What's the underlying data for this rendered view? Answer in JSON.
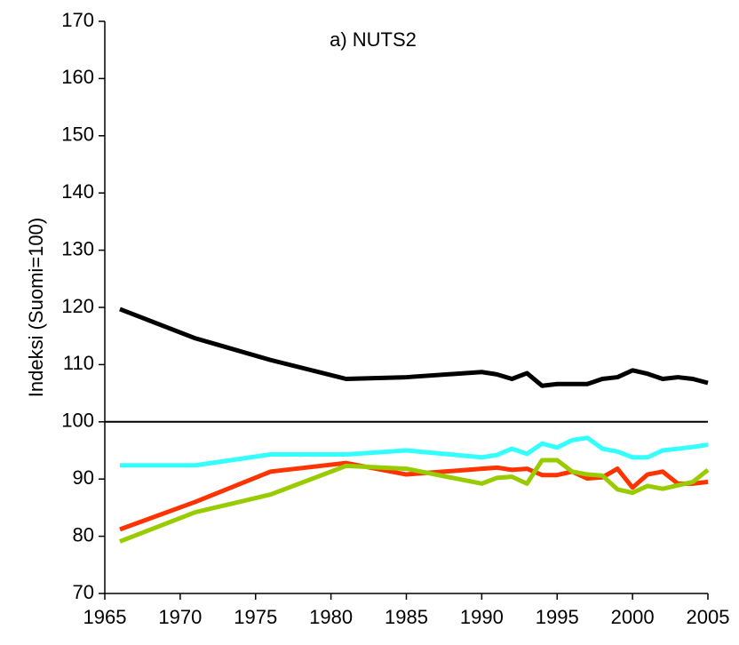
{
  "chart_data": {
    "type": "line",
    "title": "a) NUTS2",
    "y_label": "Indeksi (Suomi=100)",
    "x": [
      1966,
      1971,
      1976,
      1981,
      1985,
      1990,
      1991,
      1992,
      1993,
      1994,
      1995,
      1996,
      1997,
      1998,
      1999,
      2000,
      2001,
      2002,
      2003,
      2004,
      2005
    ],
    "series": [
      {
        "color": "#000000",
        "values": [
          119.7,
          114.6,
          110.8,
          107.5,
          107.8,
          108.7,
          108.3,
          107.5,
          108.5,
          106.3,
          106.6,
          106.6,
          106.6,
          107.5,
          107.8,
          109,
          108.4,
          107.5,
          107.8,
          107.5,
          106.8
        ]
      },
      {
        "color": "#33ffff",
        "values": [
          92.4,
          92.4,
          94.3,
          94.3,
          95,
          93.8,
          94.2,
          95.3,
          94.4,
          96.2,
          95.5,
          96.8,
          97.2,
          95.3,
          94.8,
          93.8,
          93.8,
          95,
          95.3,
          95.6,
          96
        ]
      },
      {
        "color": "#ff3300",
        "values": [
          81.2,
          86,
          91.3,
          92.8,
          90.8,
          91.8,
          92,
          91.6,
          91.8,
          90.7,
          90.7,
          91.3,
          90.1,
          90.3,
          91.8,
          88.5,
          90.8,
          91.3,
          89.2,
          89.2,
          89.5
        ]
      },
      {
        "color": "#99cc00",
        "values": [
          79.1,
          84.2,
          87.3,
          92.3,
          91.8,
          89.2,
          90.2,
          90.4,
          89.2,
          93.3,
          93.3,
          91.3,
          90.8,
          90.6,
          88.2,
          87.6,
          88.8,
          88.3,
          88.9,
          89.5,
          91.6
        ]
      }
    ],
    "reference_line": 100,
    "xlim": [
      1965,
      2005
    ],
    "xticks": [
      1965,
      1970,
      1975,
      1980,
      1985,
      1990,
      1995,
      2000,
      2005
    ],
    "ylim": [
      70,
      170
    ],
    "yticks": [
      70,
      80,
      90,
      100,
      110,
      120,
      130,
      140,
      150,
      160,
      170
    ],
    "grid": false
  }
}
